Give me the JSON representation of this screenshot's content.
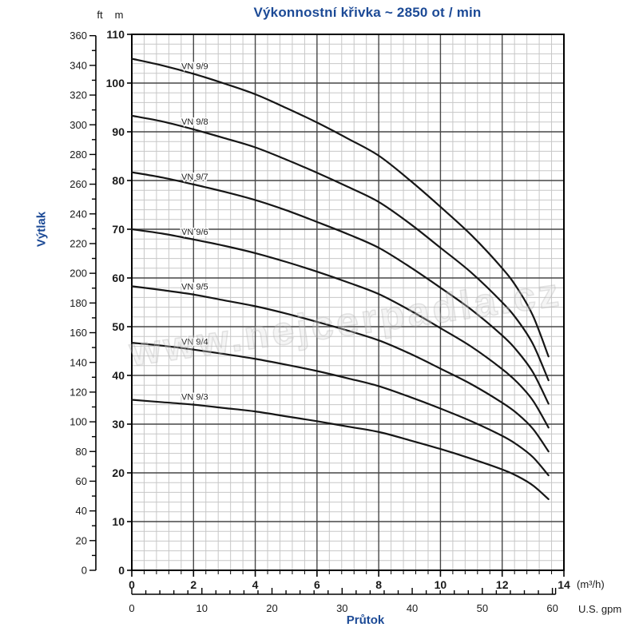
{
  "title": "Výkonnostní křivka ~ 2850 ot / min",
  "y_axis_label": "Výtlak",
  "x_axis_label": "Průtok",
  "units": {
    "y_secondary_header": "ft",
    "y_primary_header": "m",
    "x_primary_label": "(m³/h)",
    "x_secondary_label": "U.S. gpm"
  },
  "watermark": "www.nejcerpadla.cz",
  "colors": {
    "accent_blue": "#1c4a96",
    "curve": "#161616",
    "grid_minor": "#c7c7c7",
    "grid_major": "#474747",
    "axis": "#000000",
    "tick_text": "#1a1a1a"
  },
  "chart_data": {
    "type": "line",
    "title": "Výkonnostní křivka ~ 2850 ot / min",
    "xlabel": "Průtok",
    "ylabel": "Výtlak",
    "grid": true,
    "legend_position": "inline-curve-labels",
    "x_axis_primary": {
      "unit": "m³/h",
      "min": 0,
      "max": 14,
      "major_step": 2,
      "minor_step": 0.4,
      "tick_labels": [
        0,
        2,
        4,
        6,
        8,
        10,
        12,
        14
      ]
    },
    "x_axis_secondary": {
      "unit": "U.S. gpm",
      "min": 0,
      "max": 60,
      "major_step": 10,
      "minor_step": 2,
      "tick_labels": [
        0,
        10,
        20,
        30,
        40,
        50,
        60
      ],
      "m3h_per_gpm": 0.22712
    },
    "y_axis_primary": {
      "unit": "m",
      "min": 0,
      "max": 110,
      "major_step": 10,
      "minor_step": 2,
      "tick_labels": [
        0,
        10,
        20,
        30,
        40,
        50,
        60,
        70,
        80,
        90,
        100,
        110
      ]
    },
    "y_axis_secondary": {
      "unit": "ft",
      "min": 0,
      "max": 360,
      "major_step": 20,
      "minor_step": 10,
      "tick_labels": [
        0,
        20,
        40,
        60,
        80,
        100,
        120,
        140,
        160,
        180,
        200,
        220,
        240,
        260,
        280,
        300,
        320,
        340,
        360
      ],
      "m_per_ft": 0.3048
    },
    "flow_m3h": [
      0,
      1,
      2,
      3,
      4,
      5,
      6,
      7,
      8,
      9,
      10,
      11,
      12,
      12.5,
      13,
      13.5
    ],
    "series": [
      {
        "name": "VN 9/9",
        "shutoff_head_m": 105.0,
        "head_m": [
          105.0,
          103.6,
          101.9,
          99.9,
          97.7,
          94.9,
          91.9,
          88.6,
          85.1,
          80.1,
          74.6,
          68.8,
          62.0,
          57.8,
          52.2,
          43.9
        ]
      },
      {
        "name": "VN 9/8",
        "shutoff_head_m": 93.3,
        "head_m": [
          93.3,
          92.1,
          90.5,
          88.7,
          86.8,
          84.3,
          81.6,
          78.7,
          75.6,
          71.2,
          66.2,
          61.1,
          55.0,
          51.3,
          46.4,
          39.0
        ]
      },
      {
        "name": "VN 9/7",
        "shutoff_head_m": 81.7,
        "head_m": [
          81.7,
          80.6,
          79.2,
          77.7,
          76.0,
          73.9,
          71.5,
          69.0,
          66.2,
          62.3,
          58.0,
          53.5,
          48.2,
          44.9,
          40.6,
          34.2
        ]
      },
      {
        "name": "VN 9/6",
        "shutoff_head_m": 70.0,
        "head_m": [
          70.0,
          69.1,
          67.9,
          66.6,
          65.1,
          63.3,
          61.3,
          59.1,
          56.7,
          53.4,
          49.7,
          45.9,
          41.3,
          38.5,
          34.8,
          29.3
        ]
      },
      {
        "name": "VN 9/5",
        "shutoff_head_m": 58.3,
        "head_m": [
          58.3,
          57.5,
          56.6,
          55.4,
          54.2,
          52.7,
          51.0,
          49.2,
          47.2,
          44.5,
          41.4,
          38.2,
          34.4,
          32.1,
          29.0,
          24.4
        ]
      },
      {
        "name": "VN 9/4",
        "shutoff_head_m": 46.7,
        "head_m": [
          46.7,
          46.1,
          45.3,
          44.4,
          43.4,
          42.2,
          40.9,
          39.4,
          37.8,
          35.6,
          33.2,
          30.6,
          27.6,
          25.7,
          23.2,
          19.5
        ]
      },
      {
        "name": "VN 9/3",
        "shutoff_head_m": 35.0,
        "head_m": [
          35.0,
          34.5,
          34.0,
          33.3,
          32.6,
          31.6,
          30.6,
          29.5,
          28.4,
          26.7,
          24.9,
          22.9,
          20.7,
          19.3,
          17.4,
          14.6
        ]
      }
    ]
  }
}
